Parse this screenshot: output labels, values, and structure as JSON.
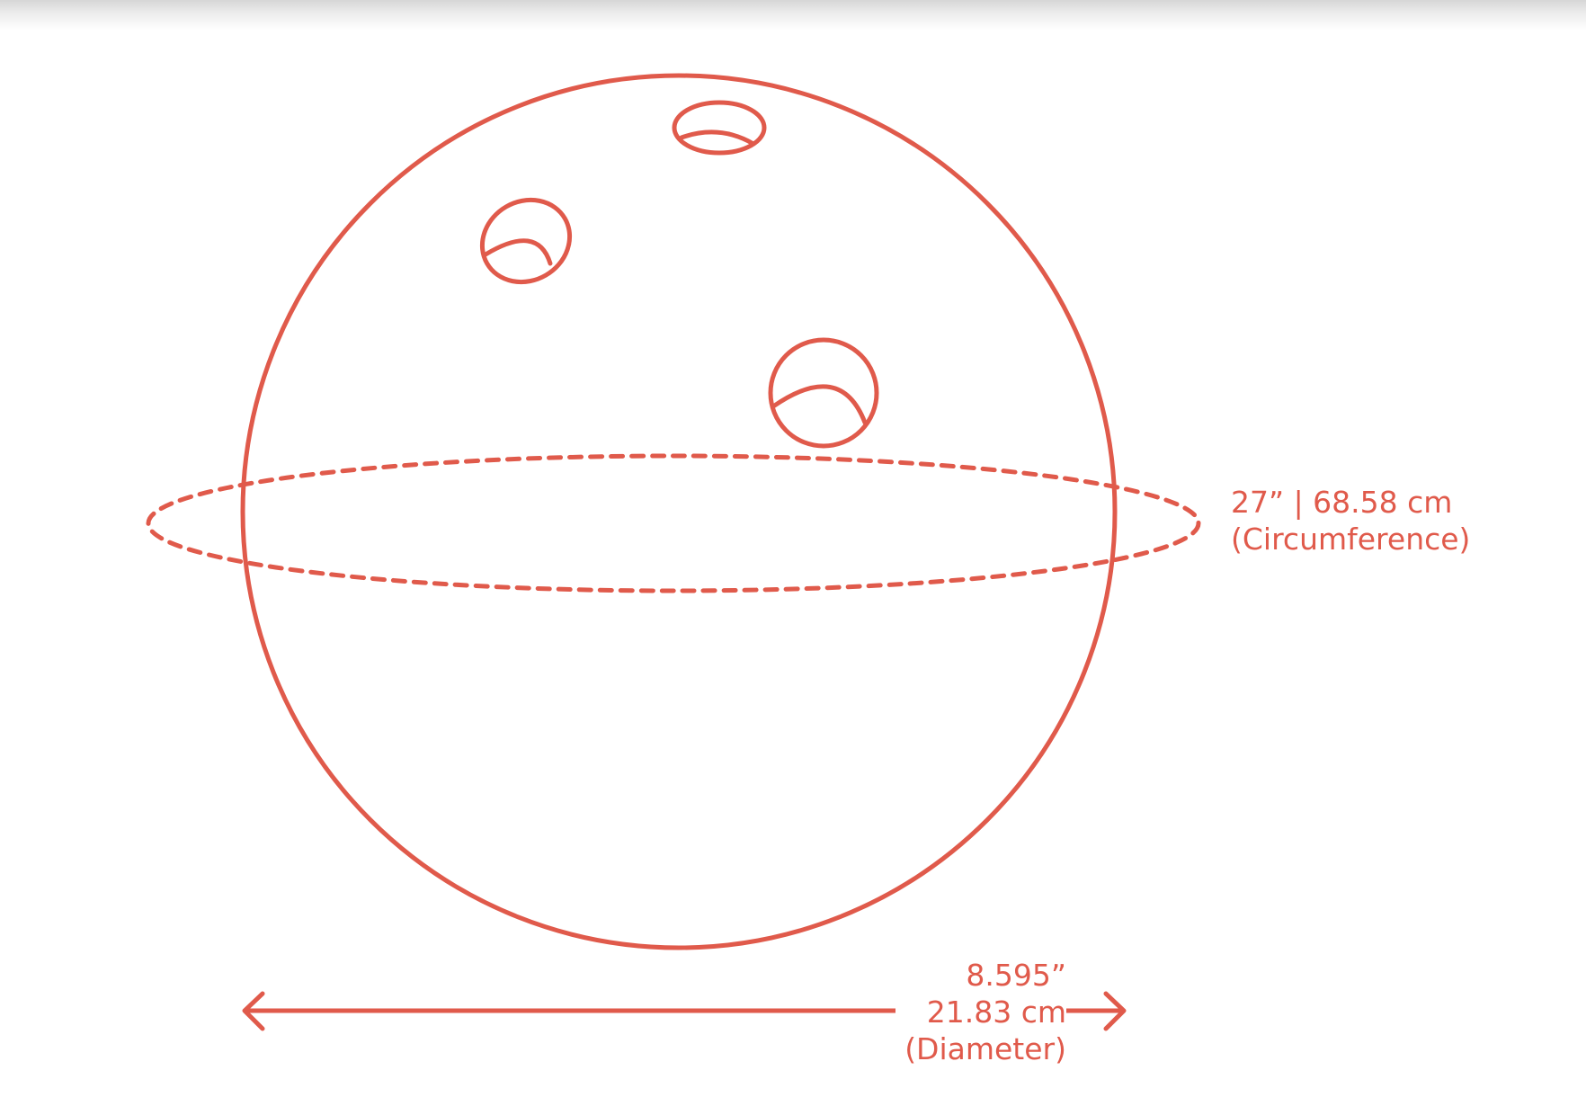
{
  "colors": {
    "stroke": "#E05A4B",
    "background": "#FFFFFF"
  },
  "labels": {
    "circumference": {
      "measure": "27” | 68.58 cm",
      "caption": "(Circumference)"
    },
    "diameter": {
      "inches": "8.595”",
      "cm": "21.83 cm",
      "caption": "(Diameter)"
    }
  }
}
